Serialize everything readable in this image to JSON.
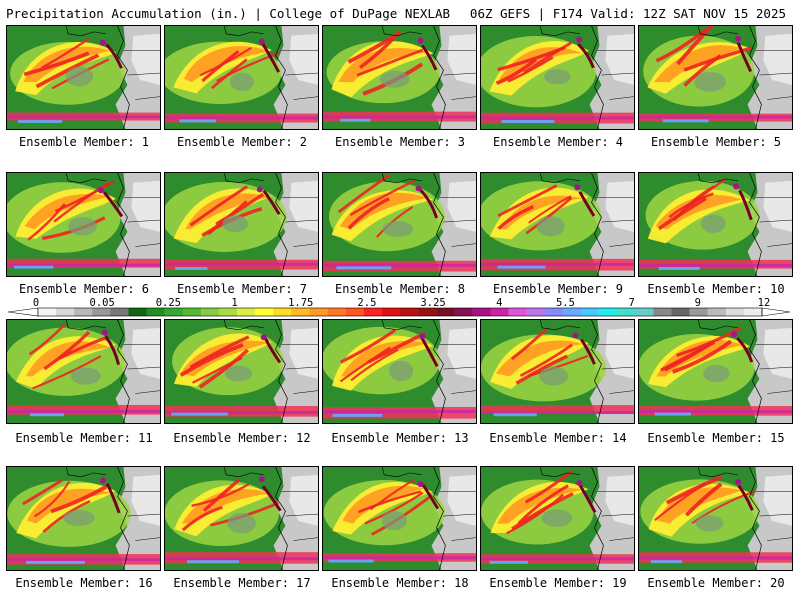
{
  "header": {
    "left_title": "Precipitation Accumulation (in.) | College of DuPage NEXLAB",
    "right_title": "06Z GEFS | F174 Valid: 12Z SAT NOV 15 2025"
  },
  "panels": [
    {
      "label": "Ensemble Member: 1"
    },
    {
      "label": "Ensemble Member: 2"
    },
    {
      "label": "Ensemble Member: 3"
    },
    {
      "label": "Ensemble Member: 4"
    },
    {
      "label": "Ensemble Member: 5"
    },
    {
      "label": "Ensemble Member: 6"
    },
    {
      "label": "Ensemble Member: 7"
    },
    {
      "label": "Ensemble Member: 8"
    },
    {
      "label": "Ensemble Member: 9"
    },
    {
      "label": "Ensemble Member: 10"
    },
    {
      "label": "Ensemble Member: 11"
    },
    {
      "label": "Ensemble Member: 12"
    },
    {
      "label": "Ensemble Member: 13"
    },
    {
      "label": "Ensemble Member: 14"
    },
    {
      "label": "Ensemble Member: 15"
    },
    {
      "label": "Ensemble Member: 16"
    },
    {
      "label": "Ensemble Member: 17"
    },
    {
      "label": "Ensemble Member: 18"
    },
    {
      "label": "Ensemble Member: 19"
    },
    {
      "label": "Ensemble Member: 20"
    }
  ],
  "colorbar": {
    "tick_labels": [
      "0",
      "0.05",
      "0.25",
      "1",
      "1.75",
      "2.5",
      "3.25",
      "4",
      "5.5",
      "7",
      "9",
      "12"
    ],
    "colors": [
      "#f4f4f4",
      "#d8d8d8",
      "#b8b8b8",
      "#989898",
      "#787878",
      "#116611",
      "#1f8f1f",
      "#33aa33",
      "#55bb33",
      "#88cc44",
      "#aadd44",
      "#ddee44",
      "#ffff33",
      "#ffdd22",
      "#ffbb22",
      "#ff9922",
      "#ff7722",
      "#ff5522",
      "#ff2222",
      "#dd1111",
      "#bb1111",
      "#991111",
      "#771122",
      "#881155",
      "#aa1188",
      "#cc22aa",
      "#dd55dd",
      "#bb77ee",
      "#8888ff",
      "#66aaff",
      "#44ccff",
      "#22eeee",
      "#44ddcc",
      "#66cccc",
      "#888888",
      "#666666",
      "#999999",
      "#bbbbbb",
      "#dddddd",
      "#eeeeee"
    ]
  }
}
